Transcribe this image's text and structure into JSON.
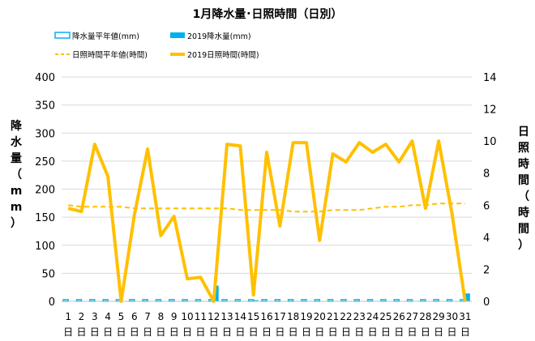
{
  "chart_data": {
    "type": "bar+line",
    "title": "1月降水量･日照時間（日別）",
    "ylabel_left": "降水量（mm）",
    "ylabel_right": "日照時間（時間）",
    "ylim_left": [
      0,
      400
    ],
    "ylim_right": [
      0,
      14
    ],
    "yticks_left": [
      "0",
      "50",
      "100",
      "150",
      "200",
      "250",
      "300",
      "350",
      "400"
    ],
    "yticks_right": [
      "0",
      "2",
      "4",
      "6",
      "8",
      "10",
      "12",
      "14"
    ],
    "categories": [
      "1",
      "2",
      "3",
      "4",
      "5",
      "6",
      "7",
      "8",
      "9",
      "10",
      "11",
      "12",
      "13",
      "14",
      "15",
      "16",
      "17",
      "18",
      "19",
      "20",
      "21",
      "22",
      "23",
      "24",
      "25",
      "26",
      "27",
      "28",
      "29",
      "30",
      "31"
    ],
    "day_suffix": "日",
    "legend": [
      {
        "label": "降水量平年値(mm)",
        "kind": "bar-outline",
        "color": "#00b0f0"
      },
      {
        "label": "2019降水量(mm)",
        "kind": "bar-solid",
        "color": "#00b0f0"
      },
      {
        "label": "日照時間平年値(時間)",
        "kind": "line-dashed",
        "color": "#ffc000"
      },
      {
        "label": "2019日照時間(時間)",
        "kind": "line-solid",
        "color": "#ffc000"
      }
    ],
    "series": [
      {
        "name": "降水量平年値(mm)",
        "axis": "left",
        "type": "bar",
        "style": "outline",
        "color": "#00b0f0",
        "values": [
          1,
          1,
          1,
          1,
          1,
          1,
          1,
          1,
          1,
          1,
          1,
          1,
          1,
          1,
          1,
          1,
          1,
          1,
          1,
          1,
          1,
          1,
          1,
          1,
          1,
          1,
          1,
          1,
          1,
          1,
          1
        ]
      },
      {
        "name": "2019降水量(mm)",
        "axis": "left",
        "type": "bar",
        "style": "solid",
        "color": "#00b0f0",
        "values": [
          0,
          0,
          0,
          0,
          0,
          0,
          0,
          0,
          0,
          0,
          0,
          28,
          0,
          0,
          2,
          0,
          0,
          0,
          0,
          0,
          0,
          0,
          0,
          0,
          0,
          0,
          0,
          0,
          0,
          0,
          14
        ]
      },
      {
        "name": "日照時間平年値(時間)",
        "axis": "right",
        "type": "line",
        "style": "dashed",
        "color": "#ffc000",
        "values": [
          6.0,
          5.9,
          5.9,
          5.9,
          5.9,
          5.8,
          5.8,
          5.8,
          5.8,
          5.8,
          5.8,
          5.8,
          5.8,
          5.7,
          5.7,
          5.7,
          5.7,
          5.6,
          5.6,
          5.6,
          5.7,
          5.7,
          5.7,
          5.8,
          5.9,
          5.9,
          6.0,
          6.0,
          6.1,
          6.1,
          6.1
        ]
      },
      {
        "name": "2019日照時間(時間)",
        "axis": "right",
        "type": "line",
        "style": "solid",
        "color": "#ffc000",
        "values": [
          5.8,
          5.6,
          9.8,
          7.8,
          0.0,
          5.4,
          9.5,
          4.1,
          5.3,
          1.4,
          1.5,
          0.0,
          9.8,
          9.7,
          0.4,
          9.3,
          4.7,
          9.9,
          9.9,
          3.8,
          9.2,
          8.7,
          9.9,
          9.3,
          9.8,
          8.7,
          10.0,
          5.8,
          10.0,
          5.5,
          0.0
        ]
      }
    ]
  }
}
